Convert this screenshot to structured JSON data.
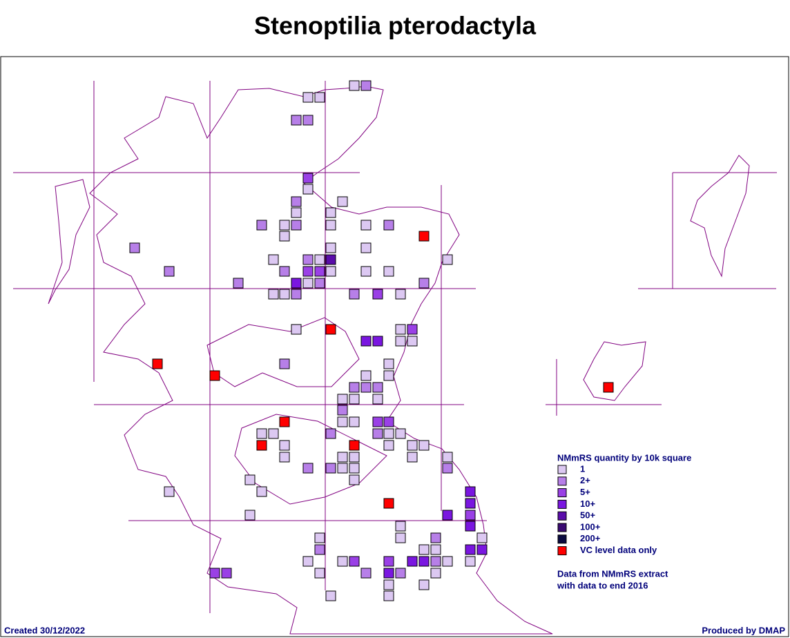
{
  "title": "Stenoptilia pterodactyla",
  "legend": {
    "title": "NMmRS quantity by 10k square",
    "items": [
      {
        "label": "1",
        "color": "#dcc8f2"
      },
      {
        "label": "2+",
        "color": "#b77fe8"
      },
      {
        "label": "5+",
        "color": "#9a40e6"
      },
      {
        "label": "10+",
        "color": "#7a16e0"
      },
      {
        "label": "50+",
        "color": "#5a0caa"
      },
      {
        "label": "100+",
        "color": "#3a0a72"
      },
      {
        "label": "200+",
        "color": "#0a0a40"
      },
      {
        "label": "VC level data only",
        "color": "#ff0000"
      }
    ]
  },
  "note": [
    "Data from NMmRS extract",
    "with data to end 2016"
  ],
  "footer": {
    "created": "Created 30/12/2022",
    "produced_by": "Produced by DMAP"
  }
}
